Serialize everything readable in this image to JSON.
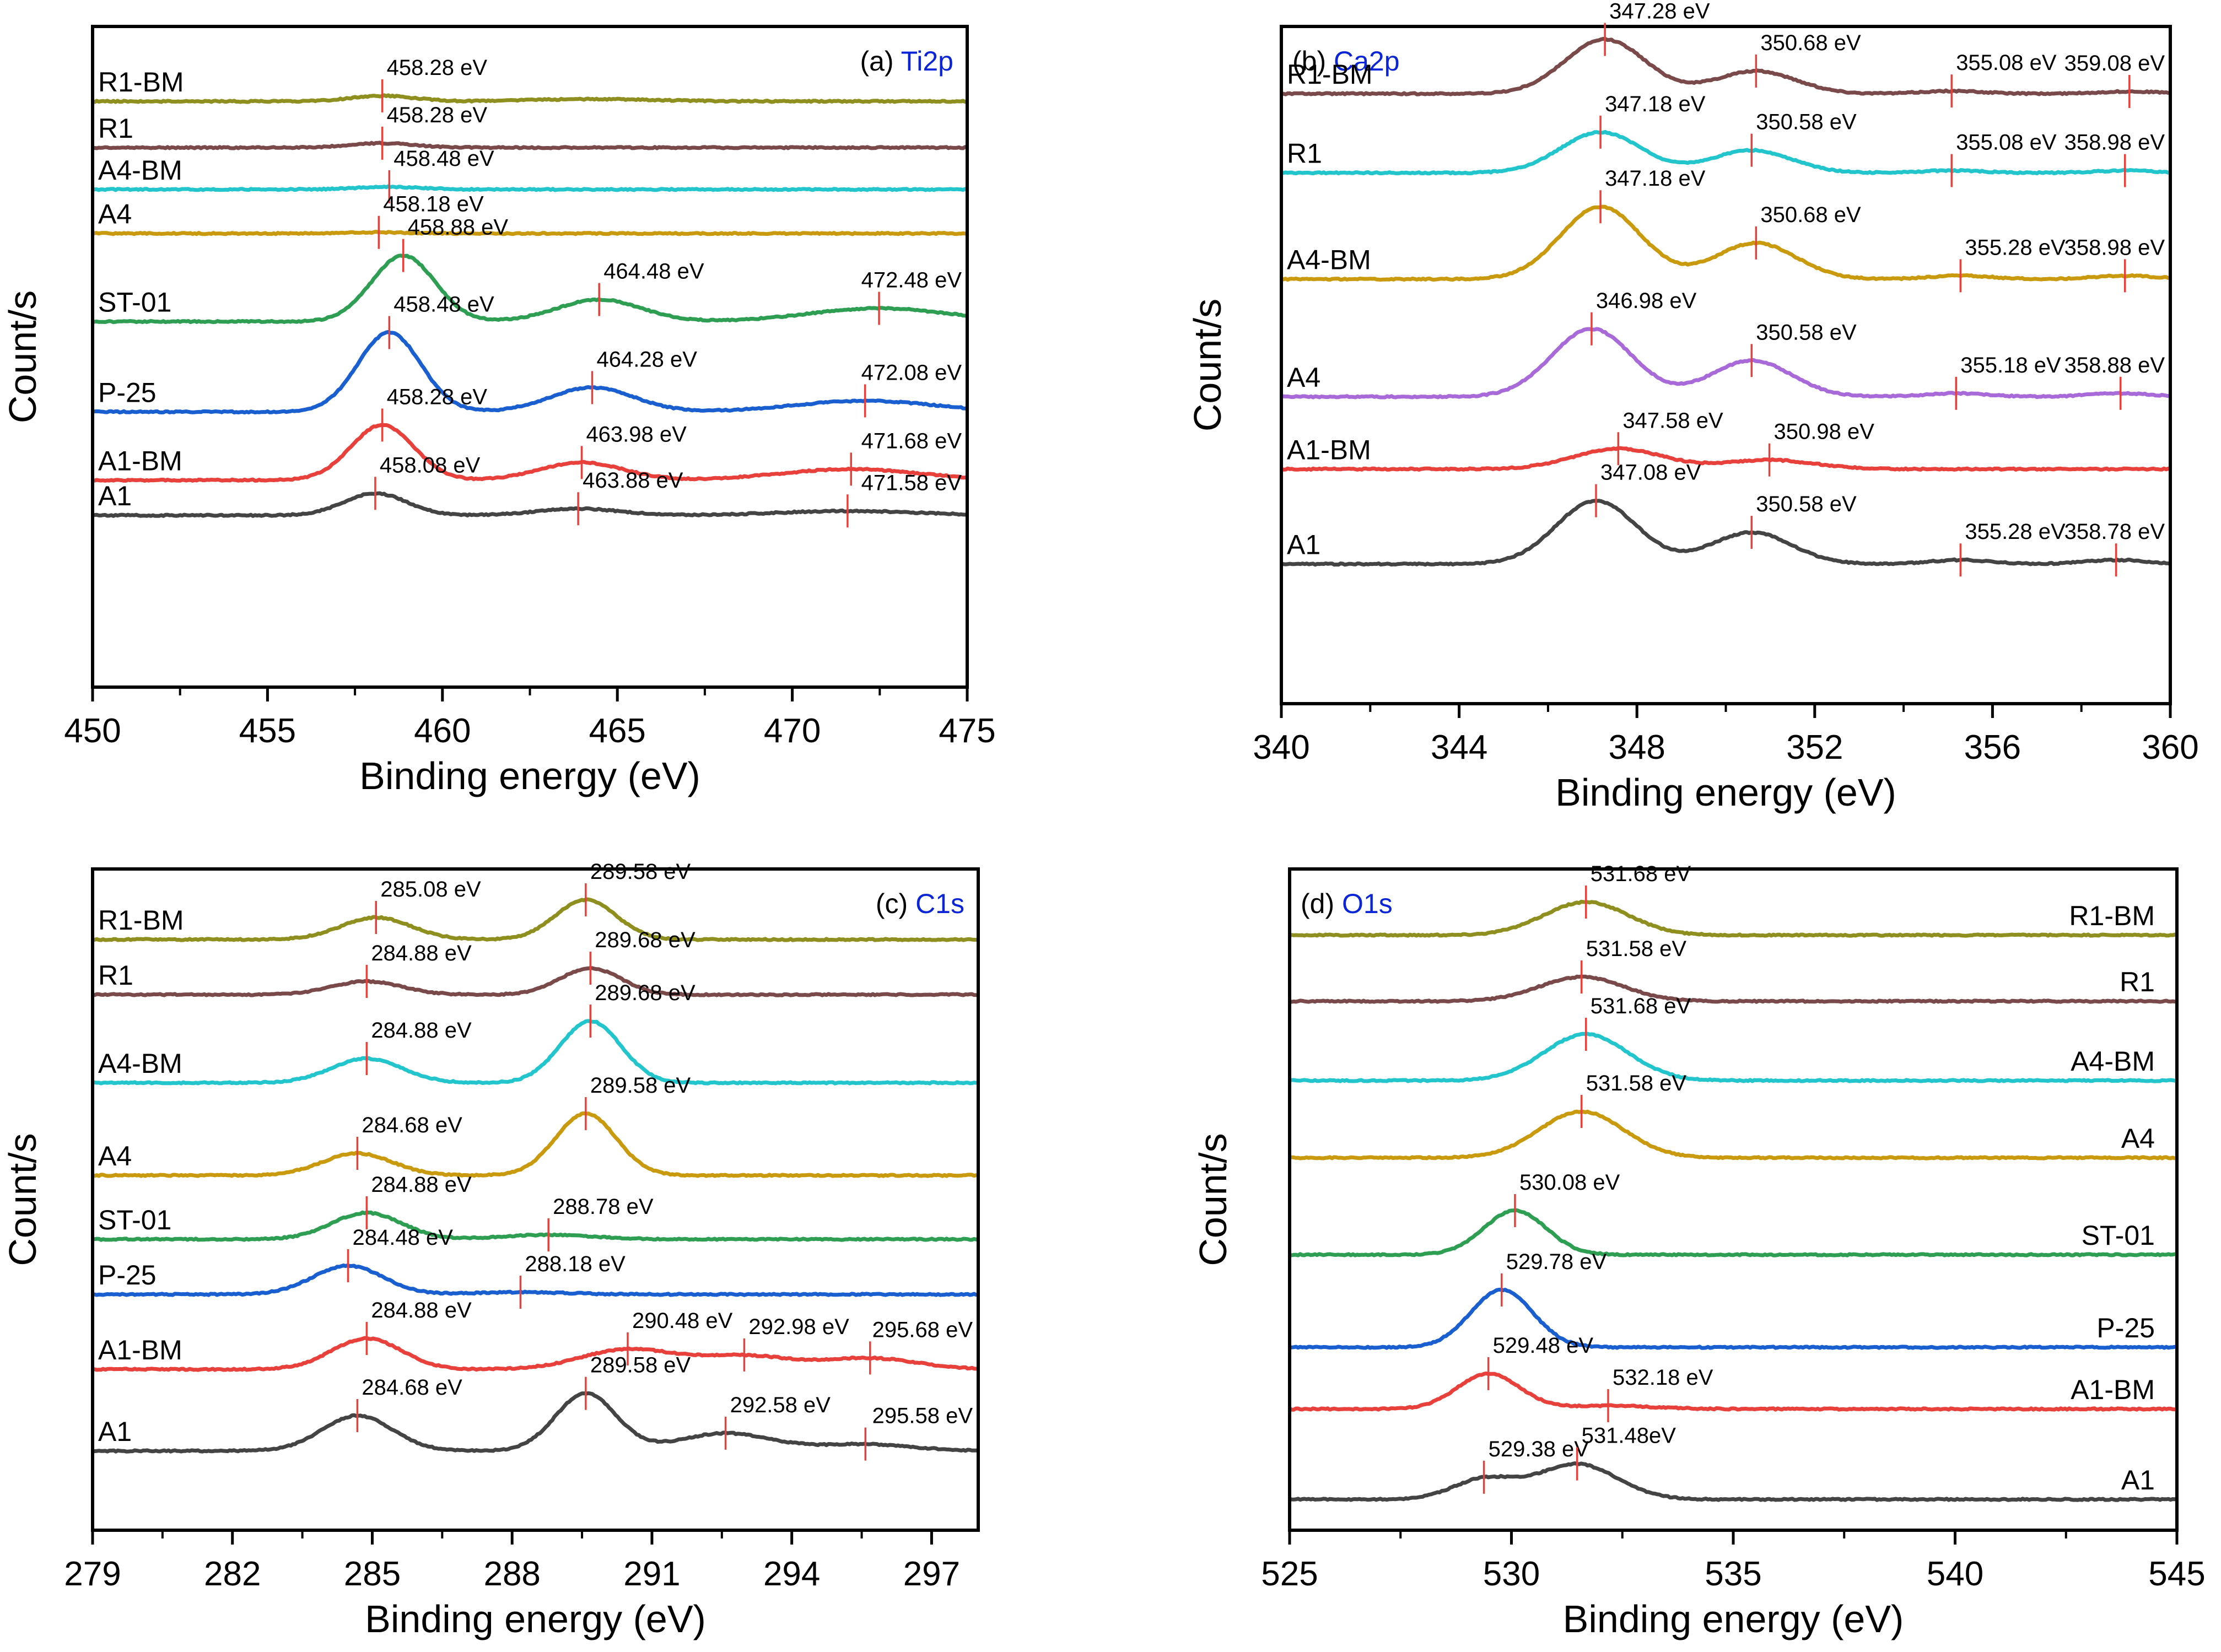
{
  "figure": {
    "xlabel": "Binding energy (eV)",
    "ylabel": "Count/s"
  },
  "chart_data": [
    {
      "id": "a",
      "type": "line",
      "title_prefix": "(a)",
      "title_element": "Ti2p",
      "title_position": "top-right",
      "title_color": "#0a24d8",
      "label_position": "left",
      "xlabel": "Binding energy (eV)",
      "ylabel": "Count/s",
      "xlim": [
        450,
        475
      ],
      "xticks": [
        450,
        455,
        460,
        465,
        470,
        475
      ],
      "baseline": -2,
      "series": [
        {
          "name": "R1-BM",
          "color": "#8f8f1f",
          "base": 17.6,
          "peaks": [
            [
              458.28,
              0.25,
              0.9
            ],
            [
              464.3,
              0.1,
              1.8
            ]
          ],
          "labels": [
            [
              458.28,
              "458.28 eV"
            ]
          ]
        },
        {
          "name": "R1",
          "color": "#7a4a4a",
          "base": 15.5,
          "peaks": [
            [
              458.28,
              0.2,
              0.9
            ]
          ],
          "labels": [
            [
              458.28,
              "458.28 eV"
            ]
          ]
        },
        {
          "name": "A4-BM",
          "color": "#22c5cc",
          "base": 13.6,
          "peaks": [
            [
              458.48,
              0.12,
              0.9
            ]
          ],
          "labels": [
            [
              458.48,
              "458.48 eV"
            ]
          ]
        },
        {
          "name": "A4",
          "color": "#c99a0e",
          "base": 11.6,
          "peaks": [
            [
              458.18,
              0.05,
              0.9
            ]
          ],
          "labels": [
            [
              458.18,
              "458.18 eV"
            ]
          ]
        },
        {
          "name": "ST-01",
          "color": "#2e9e53",
          "base": 7.6,
          "peaks": [
            [
              458.88,
              3.0,
              0.9
            ],
            [
              464.48,
              1.0,
              1.2
            ],
            [
              472.48,
              0.6,
              2.0
            ]
          ],
          "labels": [
            [
              458.88,
              "458.88 eV"
            ],
            [
              464.48,
              "464.48 eV"
            ],
            [
              472.48,
              "472.48 eV"
            ]
          ]
        },
        {
          "name": "P-25",
          "color": "#1a5fd0",
          "base": 3.5,
          "peaks": [
            [
              458.48,
              3.6,
              0.9
            ],
            [
              464.28,
              1.1,
              1.2
            ],
            [
              472.08,
              0.5,
              2.0
            ]
          ],
          "labels": [
            [
              458.48,
              "458.48 eV"
            ],
            [
              464.28,
              "464.28 eV"
            ],
            [
              472.08,
              "472.08 eV"
            ]
          ]
        },
        {
          "name": "A1-BM",
          "color": "#e8413c",
          "base": 0.4,
          "peaks": [
            [
              458.28,
              2.5,
              0.9
            ],
            [
              463.98,
              0.8,
              1.2
            ],
            [
              471.68,
              0.5,
              2.0
            ]
          ],
          "labels": [
            [
              458.28,
              "458.28 eV"
            ],
            [
              463.98,
              "463.98 eV"
            ],
            [
              471.68,
              "471.68 eV"
            ]
          ]
        },
        {
          "name": "A1",
          "color": "#444444",
          "base": -1.2,
          "peaks": [
            [
              458.08,
              1.0,
              0.9
            ],
            [
              463.88,
              0.3,
              1.2
            ],
            [
              471.58,
              0.2,
              2.0
            ]
          ],
          "labels": [
            [
              458.08,
              "458.08 eV"
            ],
            [
              463.88,
              "463.88 eV"
            ],
            [
              471.58,
              "471.58 eV"
            ]
          ]
        }
      ]
    },
    {
      "id": "b",
      "type": "line",
      "title_prefix": "(b)",
      "title_element": "Ca2p",
      "title_position": "top-left",
      "title_color": "#0a24d8",
      "label_position": "left",
      "xlabel": "Binding energy (eV)",
      "ylabel": "Count/s",
      "xlim": [
        340,
        360
      ],
      "xticks": [
        340,
        344,
        348,
        352,
        356,
        360
      ],
      "baseline": -2,
      "series": [
        {
          "name": "R1-BM",
          "color": "#7a4a4a",
          "base": 18.0,
          "peaks": [
            [
              347.28,
              2.4,
              0.9
            ],
            [
              350.68,
              1.0,
              0.9
            ],
            [
              355.08,
              0.12,
              0.7
            ],
            [
              359.08,
              0.1,
              0.7
            ]
          ],
          "labels": [
            [
              347.28,
              "347.28 eV"
            ],
            [
              350.68,
              "350.68 eV"
            ],
            [
              355.08,
              "355.08 eV"
            ],
            [
              359.08,
              "359.08 eV"
            ]
          ]
        },
        {
          "name": "R1",
          "color": "#22c5cc",
          "base": 14.5,
          "peaks": [
            [
              347.18,
              1.8,
              0.9
            ],
            [
              350.58,
              1.0,
              0.9
            ],
            [
              355.08,
              0.1,
              0.7
            ],
            [
              358.98,
              0.1,
              0.7
            ]
          ],
          "labels": [
            [
              347.18,
              "347.18 eV"
            ],
            [
              350.58,
              "350.58 eV"
            ],
            [
              355.08,
              "355.08 eV"
            ],
            [
              358.98,
              "358.98 eV"
            ]
          ]
        },
        {
          "name": "A4-BM",
          "color": "#c99a0e",
          "base": 9.8,
          "peaks": [
            [
              347.18,
              3.2,
              0.9
            ],
            [
              350.68,
              1.6,
              0.9
            ],
            [
              355.28,
              0.15,
              0.7
            ],
            [
              358.98,
              0.15,
              0.7
            ]
          ],
          "labels": [
            [
              347.18,
              "347.18 eV"
            ],
            [
              350.68,
              "350.68 eV"
            ],
            [
              355.28,
              "355.28 eV"
            ],
            [
              358.98,
              "358.98 eV"
            ]
          ]
        },
        {
          "name": "A4",
          "color": "#a86ad8",
          "base": 4.6,
          "peaks": [
            [
              346.98,
              3.0,
              0.9
            ],
            [
              350.58,
              1.6,
              0.9
            ],
            [
              355.18,
              0.15,
              0.7
            ],
            [
              358.88,
              0.15,
              0.7
            ]
          ],
          "labels": [
            [
              346.98,
              "346.98 eV"
            ],
            [
              350.58,
              "350.58 eV"
            ],
            [
              355.18,
              "355.18 eV"
            ],
            [
              358.88,
              "358.88 eV"
            ]
          ]
        },
        {
          "name": "A1-BM",
          "color": "#e8413c",
          "base": 1.4,
          "peaks": [
            [
              347.58,
              0.9,
              1.0
            ],
            [
              350.98,
              0.4,
              1.0
            ]
          ],
          "labels": [
            [
              347.58,
              "347.58 eV"
            ],
            [
              350.98,
              "350.98 eV"
            ]
          ]
        },
        {
          "name": "A1",
          "color": "#444444",
          "base": -2.8,
          "peaks": [
            [
              347.08,
              2.8,
              0.9
            ],
            [
              350.58,
              1.4,
              0.9
            ],
            [
              355.28,
              0.18,
              0.7
            ],
            [
              358.78,
              0.18,
              0.7
            ]
          ],
          "labels": [
            [
              347.08,
              "347.08 eV"
            ],
            [
              350.58,
              "350.58 eV"
            ],
            [
              355.28,
              "355.28 eV"
            ],
            [
              358.78,
              "358.78 eV"
            ]
          ]
        }
      ]
    },
    {
      "id": "c",
      "type": "line",
      "title_prefix": "(c)",
      "title_element": "C1s",
      "title_position": "top-right",
      "title_color": "#0a24d8",
      "label_position": "left",
      "xlabel": "Binding energy (eV)",
      "ylabel": "Count/s",
      "xlim": [
        279,
        298
      ],
      "xticks": [
        279,
        282,
        285,
        288,
        291,
        294,
        297
      ],
      "baseline": -2,
      "series": [
        {
          "name": "R1-BM",
          "color": "#8f8f1f",
          "base": 17.8,
          "peaks": [
            [
              285.08,
              1.0,
              0.75
            ],
            [
              289.58,
              1.8,
              0.65
            ]
          ],
          "labels": [
            [
              285.08,
              "285.08 eV"
            ],
            [
              289.58,
              "289.58 eV"
            ]
          ]
        },
        {
          "name": "R1",
          "color": "#7a4a4a",
          "base": 15.3,
          "peaks": [
            [
              284.88,
              0.6,
              0.75
            ],
            [
              289.68,
              1.2,
              0.65
            ]
          ],
          "labels": [
            [
              284.88,
              "284.88 eV"
            ],
            [
              289.68,
              "289.68 eV"
            ]
          ]
        },
        {
          "name": "A4-BM",
          "color": "#22c5cc",
          "base": 11.3,
          "peaks": [
            [
              284.88,
              1.1,
              0.75
            ],
            [
              289.68,
              2.8,
              0.65
            ]
          ],
          "labels": [
            [
              284.88,
              "284.88 eV"
            ],
            [
              289.68,
              "289.68 eV"
            ]
          ]
        },
        {
          "name": "A4",
          "color": "#c99a0e",
          "base": 7.1,
          "peaks": [
            [
              284.68,
              1.0,
              0.75
            ],
            [
              289.58,
              2.8,
              0.65
            ]
          ],
          "labels": [
            [
              284.68,
              "284.68 eV"
            ],
            [
              289.58,
              "289.58 eV"
            ]
          ]
        },
        {
          "name": "ST-01",
          "color": "#2e9e53",
          "base": 4.2,
          "peaks": [
            [
              284.88,
              1.2,
              0.75
            ],
            [
              288.78,
              0.2,
              1.0
            ]
          ],
          "labels": [
            [
              284.88,
              "284.88 eV"
            ],
            [
              288.78,
              "288.78 eV"
            ]
          ]
        },
        {
          "name": "P-25",
          "color": "#1a5fd0",
          "base": 1.7,
          "peaks": [
            [
              284.48,
              1.3,
              0.75
            ],
            [
              288.18,
              0.1,
              1.0
            ]
          ],
          "labels": [
            [
              284.48,
              "284.48 eV"
            ],
            [
              288.18,
              "288.18 eV"
            ]
          ]
        },
        {
          "name": "A1-BM",
          "color": "#e8413c",
          "base": -1.7,
          "peaks": [
            [
              284.88,
              1.4,
              0.75
            ],
            [
              290.48,
              0.9,
              1.0
            ],
            [
              292.98,
              0.6,
              1.0
            ],
            [
              295.68,
              0.5,
              1.0
            ]
          ],
          "labels": [
            [
              284.88,
              "284.88 eV"
            ],
            [
              290.48,
              "290.48 eV"
            ],
            [
              292.98,
              "292.98 eV"
            ],
            [
              295.68,
              "295.68 eV"
            ]
          ]
        },
        {
          "name": "A1",
          "color": "#444444",
          "base": -5.4,
          "peaks": [
            [
              284.68,
              1.6,
              0.75
            ],
            [
              289.58,
              2.6,
              0.65
            ],
            [
              292.58,
              0.8,
              1.0
            ],
            [
              295.58,
              0.3,
              1.0
            ]
          ],
          "labels": [
            [
              284.68,
              "284.68 eV"
            ],
            [
              289.58,
              "289.58 eV"
            ],
            [
              292.58,
              "292.58 eV"
            ],
            [
              295.58,
              "295.58 eV"
            ]
          ]
        }
      ]
    },
    {
      "id": "d",
      "type": "line",
      "title_prefix": "(d)",
      "title_element": "O1s",
      "title_position": "top-left",
      "title_color": "#0a24d8",
      "label_position": "right",
      "xlabel": "Binding energy (eV)",
      "ylabel": "Count/s",
      "xlim": [
        525,
        545
      ],
      "xticks": [
        525,
        530,
        535,
        540,
        545
      ],
      "baseline": -2,
      "series": [
        {
          "name": "R1-BM",
          "color": "#8f8f1f",
          "base": 18.0,
          "peaks": [
            [
              531.68,
              1.5,
              0.95
            ]
          ],
          "labels": [
            [
              531.68,
              "531.68 eV"
            ]
          ]
        },
        {
          "name": "R1",
          "color": "#7a4a4a",
          "base": 15.0,
          "peaks": [
            [
              531.58,
              1.1,
              0.95
            ]
          ],
          "labels": [
            [
              531.58,
              "531.58 eV"
            ]
          ]
        },
        {
          "name": "A4-BM",
          "color": "#22c5cc",
          "base": 11.4,
          "peaks": [
            [
              531.68,
              2.1,
              0.95
            ]
          ],
          "labels": [
            [
              531.68,
              "531.68 eV"
            ]
          ]
        },
        {
          "name": "A4",
          "color": "#c99a0e",
          "base": 7.9,
          "peaks": [
            [
              531.58,
              2.1,
              0.95
            ]
          ],
          "labels": [
            [
              531.58,
              "531.58 eV"
            ]
          ]
        },
        {
          "name": "ST-01",
          "color": "#2e9e53",
          "base": 3.5,
          "peaks": [
            [
              530.08,
              2.0,
              0.7
            ]
          ],
          "labels": [
            [
              530.08,
              "530.08 eV"
            ]
          ]
        },
        {
          "name": "P-25",
          "color": "#1a5fd0",
          "base": -0.7,
          "peaks": [
            [
              529.78,
              2.6,
              0.7
            ]
          ],
          "labels": [
            [
              529.78,
              "529.78 eV"
            ]
          ]
        },
        {
          "name": "A1-BM",
          "color": "#e8413c",
          "base": -3.5,
          "peaks": [
            [
              529.48,
              1.6,
              0.7
            ],
            [
              532.18,
              0.15,
              1.0
            ]
          ],
          "labels": [
            [
              529.48,
              "529.48 eV"
            ],
            [
              532.18,
              "532.18 eV"
            ]
          ]
        },
        {
          "name": "A1",
          "color": "#444444",
          "base": -7.6,
          "peaks": [
            [
              529.38,
              0.9,
              0.7
            ],
            [
              531.48,
              1.6,
              0.9
            ]
          ],
          "labels": [
            [
              529.38,
              "529.38 eV"
            ],
            [
              531.48,
              "531.48eV"
            ]
          ]
        }
      ]
    }
  ]
}
